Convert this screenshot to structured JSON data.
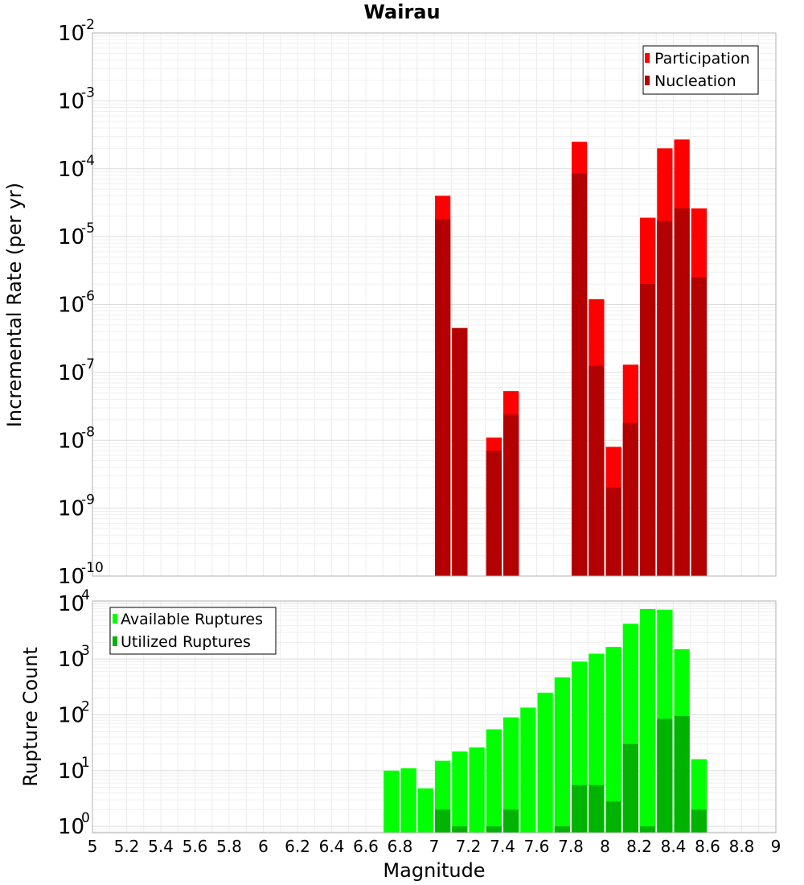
{
  "chart_data": [
    {
      "type": "bar",
      "title": "Wairau",
      "xlabel": "",
      "ylabel": "Incremental Rate (per yr)",
      "yscale": "log",
      "ylim": [
        1e-10,
        0.01
      ],
      "xlim": [
        5,
        9
      ],
      "y_tick_bases": [
        "10",
        "10",
        "10",
        "10",
        "10",
        "10",
        "10",
        "10",
        "10"
      ],
      "y_tick_exponents": [
        "-10",
        "-9",
        "-8",
        "-7",
        "-6",
        "-5",
        "-4",
        "-3",
        "-2"
      ],
      "grid": true,
      "legend_position": "top-right",
      "colors": {
        "Participation": "#ff0000",
        "Nucleation": "#b30000"
      },
      "series": [
        {
          "name": "Participation",
          "x": [
            7.05,
            7.15,
            7.35,
            7.45,
            7.85,
            7.95,
            8.05,
            8.15,
            8.25,
            8.35,
            8.45,
            8.55
          ],
          "values": [
            4e-05,
            4.5e-07,
            1.1e-08,
            5.3e-08,
            0.00025,
            1.2e-06,
            8e-09,
            1.3e-07,
            1.9e-05,
            0.0002,
            0.00027,
            2.6e-05
          ]
        },
        {
          "name": "Nucleation",
          "x": [
            7.05,
            7.15,
            7.35,
            7.45,
            7.85,
            7.95,
            8.05,
            8.15,
            8.25,
            8.35,
            8.45,
            8.55
          ],
          "values": [
            1.8e-05,
            4.5e-07,
            7e-09,
            2.4e-08,
            8.5e-05,
            1.25e-07,
            2e-09,
            1.8e-08,
            2e-06,
            1.7e-05,
            2.6e-05,
            2.5e-06
          ]
        }
      ]
    },
    {
      "type": "bar",
      "title": "",
      "xlabel": "Magnitude",
      "ylabel": "Rupture Count",
      "yscale": "log",
      "ylim": [
        0.77,
        11000
      ],
      "xlim": [
        5,
        9
      ],
      "x_ticks": [
        "5",
        "5.2",
        "5.4",
        "5.6",
        "5.8",
        "6",
        "6.2",
        "6.4",
        "6.6",
        "6.8",
        "7",
        "7.2",
        "7.4",
        "7.6",
        "7.8",
        "8",
        "8.2",
        "8.4",
        "8.6",
        "8.8",
        "9"
      ],
      "y_tick_bases": [
        "10",
        "10",
        "10",
        "10",
        "10"
      ],
      "y_tick_exponents": [
        "0",
        "1",
        "2",
        "3",
        "4"
      ],
      "grid": true,
      "legend_position": "top-left",
      "colors": {
        "Available Ruptures": "#00ff00",
        "Utilized Ruptures": "#00b300"
      },
      "series": [
        {
          "name": "Available Ruptures",
          "x": [
            6.75,
            6.85,
            6.95,
            7.05,
            7.15,
            7.25,
            7.35,
            7.45,
            7.55,
            7.65,
            7.75,
            7.85,
            7.95,
            8.05,
            8.15,
            8.25,
            8.35,
            8.45,
            8.55
          ],
          "values": [
            10,
            11,
            4.8,
            15,
            22,
            26,
            55,
            90,
            135,
            250,
            470,
            900,
            1250,
            1650,
            4300,
            7900,
            7700,
            1500,
            16
          ]
        },
        {
          "name": "Utilized Ruptures",
          "x": [
            7.05,
            7.15,
            7.35,
            7.45,
            7.75,
            7.85,
            7.95,
            8.05,
            8.15,
            8.25,
            8.35,
            8.45,
            8.55
          ],
          "values": [
            2,
            1,
            1,
            2,
            1,
            5.5,
            5.5,
            2.8,
            30,
            1,
            85,
            95,
            2
          ]
        }
      ]
    }
  ]
}
